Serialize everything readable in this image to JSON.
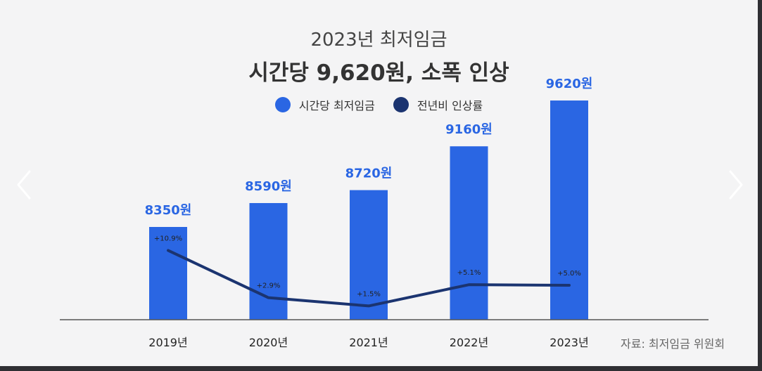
{
  "header": {
    "subtitle": "2023년 최저임금",
    "title": "시간당 9,620원, 소폭 인상"
  },
  "legend": {
    "bar_label": "시간당 최저임금",
    "line_label": "전년비 인상률"
  },
  "source": "자료: 최저임금 위원회",
  "colors": {
    "bar": "#2a66e3",
    "line": "#1b3470",
    "bar_label": "#2a66e3"
  },
  "nav": {
    "prev_icon": "chevron-left-icon",
    "next_icon": "chevron-right-icon"
  },
  "chart_data": {
    "type": "bar",
    "categories": [
      "2019년",
      "2020년",
      "2021년",
      "2022년",
      "2023년"
    ],
    "series": [
      {
        "name": "시간당 최저임금",
        "type": "bar",
        "values": [
          8350,
          8590,
          8720,
          9160,
          9620
        ],
        "labels": [
          "8350원",
          "8590원",
          "8720원",
          "9160원",
          "9620원"
        ]
      },
      {
        "name": "전년비 인상률",
        "type": "line",
        "values": [
          10.9,
          2.9,
          1.5,
          5.1,
          5.0
        ],
        "labels": [
          "+10.9%",
          "+2.9%",
          "+1.5%",
          "+5.1%",
          "+5.0%"
        ]
      }
    ],
    "title": "시간당 9,620원, 소폭 인상",
    "subtitle": "2023년 최저임금",
    "legend_position": "top-center",
    "grid": false
  }
}
